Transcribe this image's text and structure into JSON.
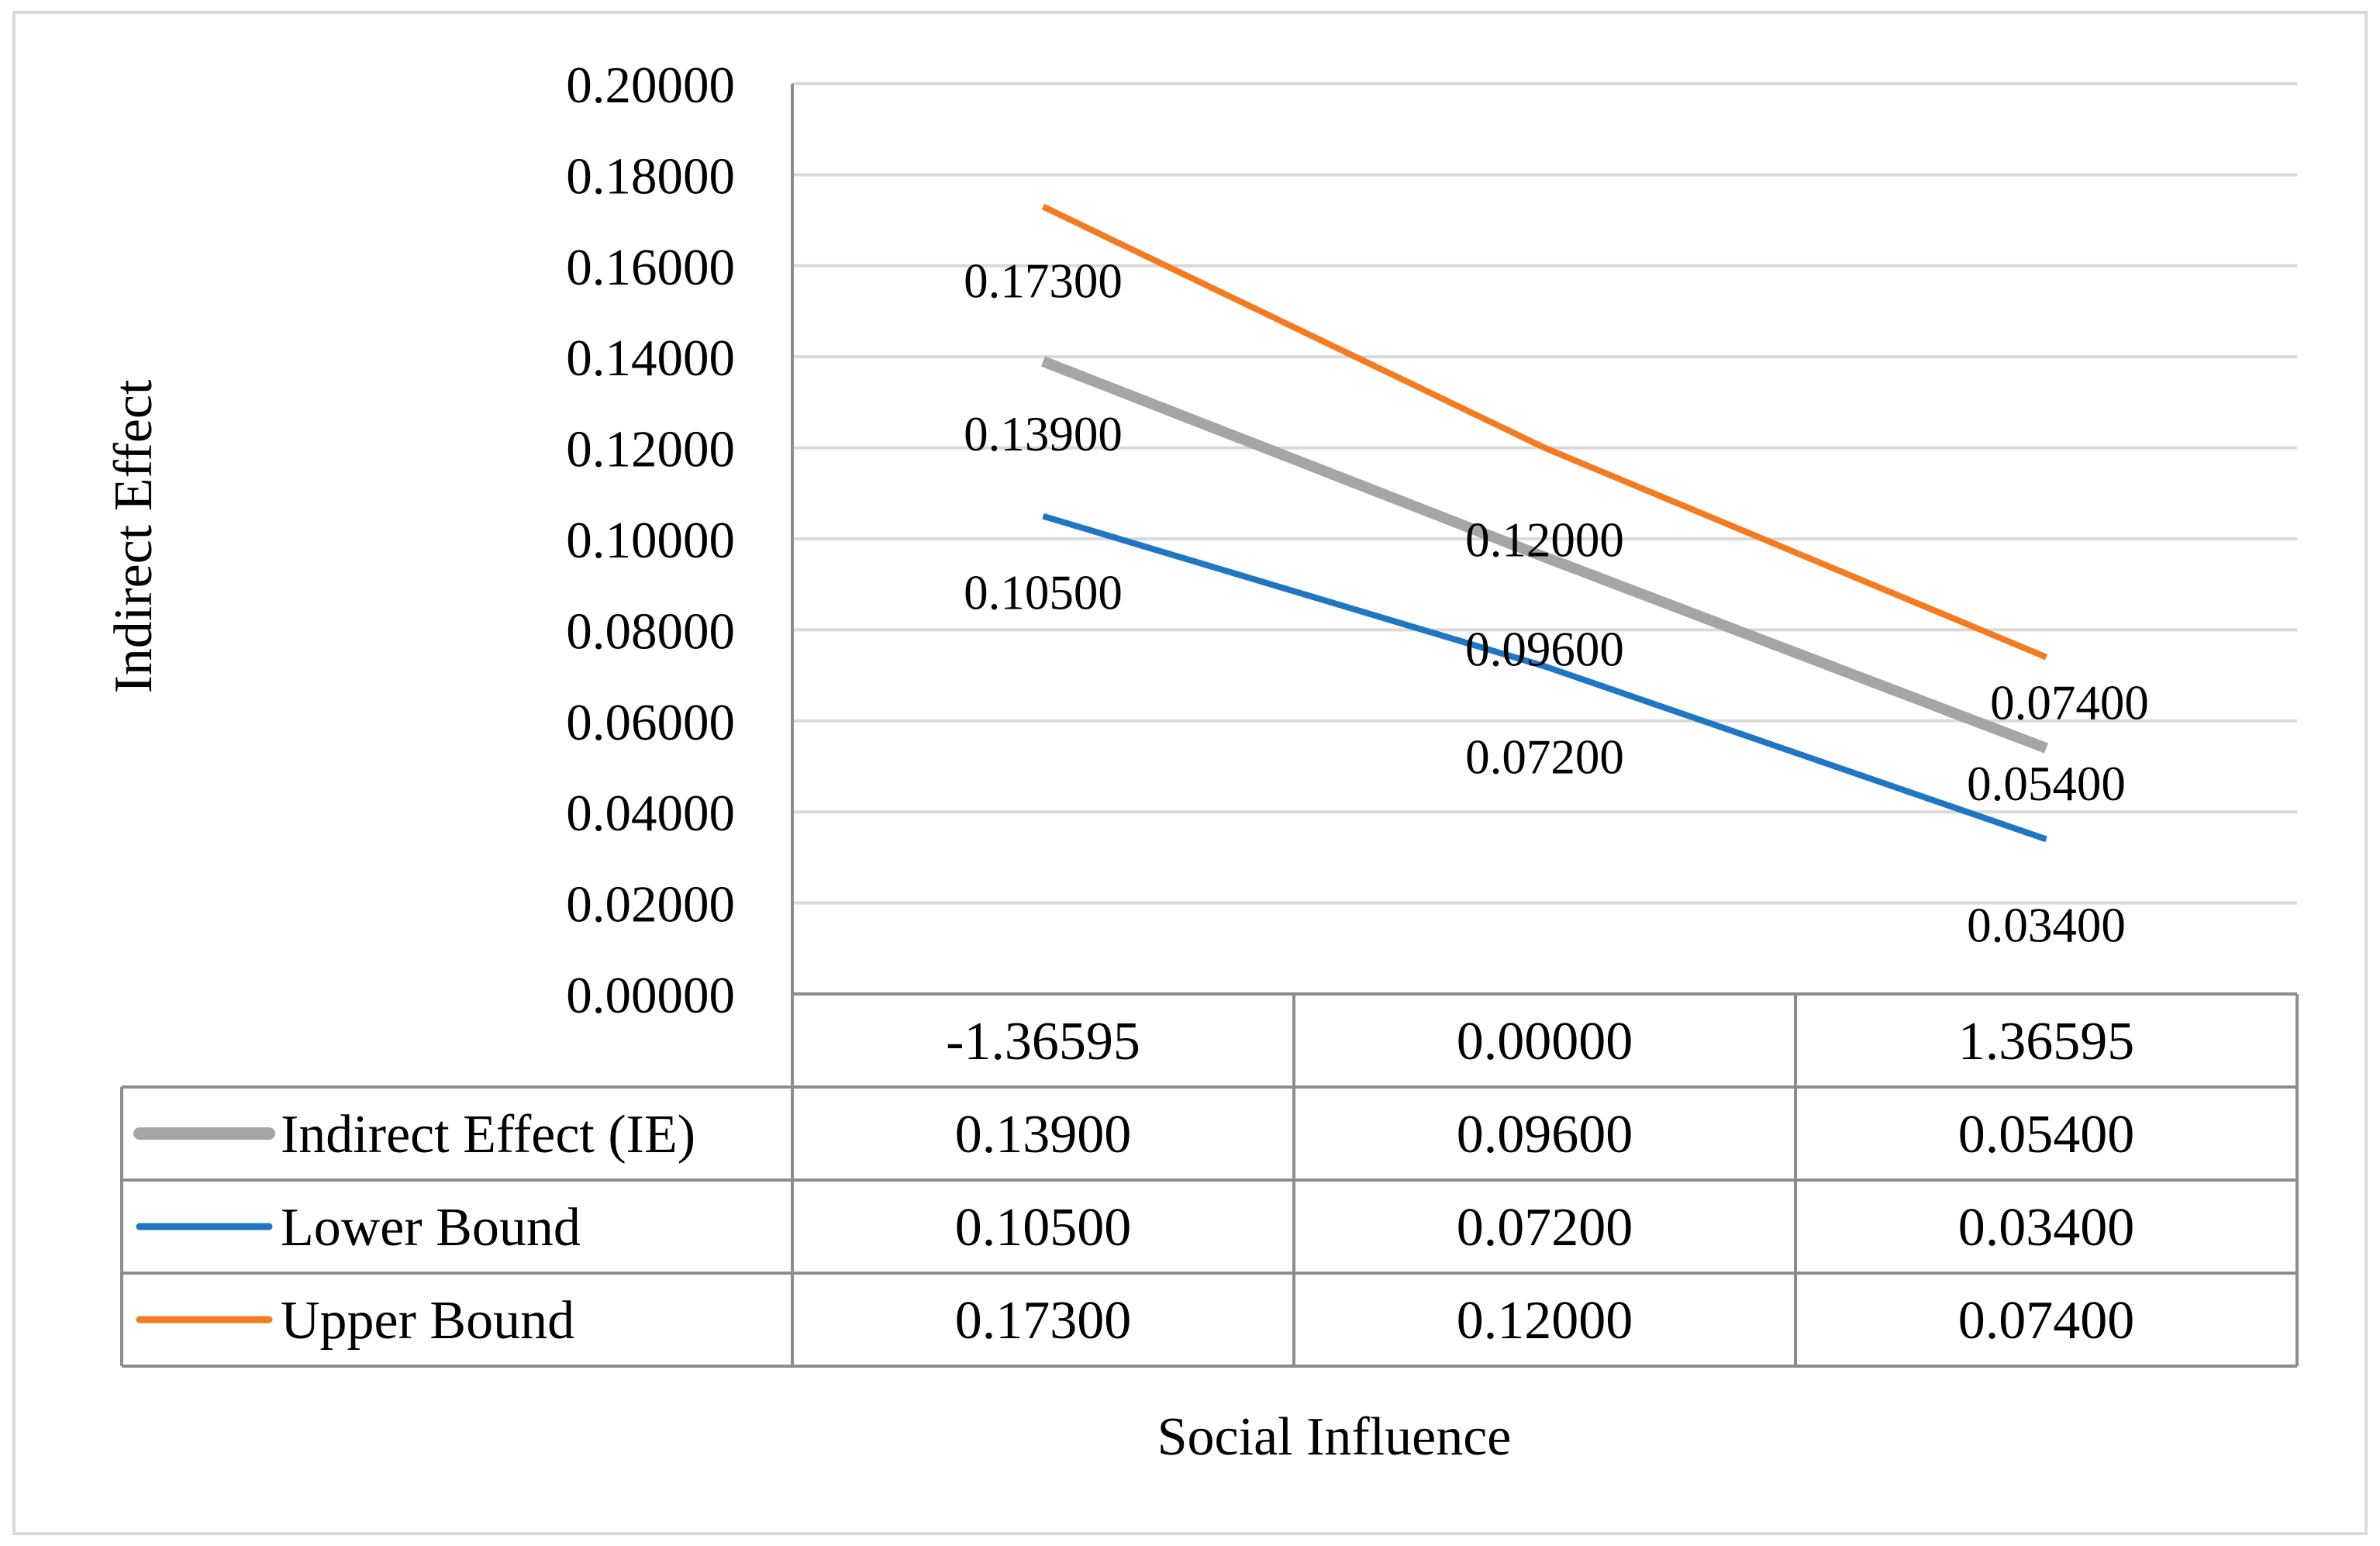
{
  "chart_data": {
    "type": "line",
    "title": "",
    "xlabel": "Social Influence",
    "ylabel": "Indirect Effect",
    "categories": [
      "-1.36595",
      "0.00000",
      "1.36595"
    ],
    "ylim": [
      0,
      0.2
    ],
    "y_tick_step": 0.02,
    "y_tick_labels": [
      "0.00000",
      "0.02000",
      "0.04000",
      "0.06000",
      "0.08000",
      "0.10000",
      "0.12000",
      "0.14000",
      "0.16000",
      "0.18000",
      "0.20000"
    ],
    "grid": true,
    "legend": "data-table",
    "series": [
      {
        "name": "Indirect Effect (IE)",
        "color": "#a5a5a5",
        "values": [
          0.139,
          0.096,
          0.054
        ],
        "labels": [
          "0.13900",
          "0.09600",
          "0.05400"
        ]
      },
      {
        "name": "Lower Bound",
        "color": "#1f77c4",
        "values": [
          0.105,
          0.072,
          0.034
        ],
        "labels": [
          "0.10500",
          "0.07200",
          "0.03400"
        ]
      },
      {
        "name": "Upper Bound",
        "color": "#f47b20",
        "values": [
          0.173,
          0.12,
          0.074
        ],
        "labels": [
          "0.17300",
          "0.12000",
          "0.07400"
        ]
      }
    ]
  }
}
